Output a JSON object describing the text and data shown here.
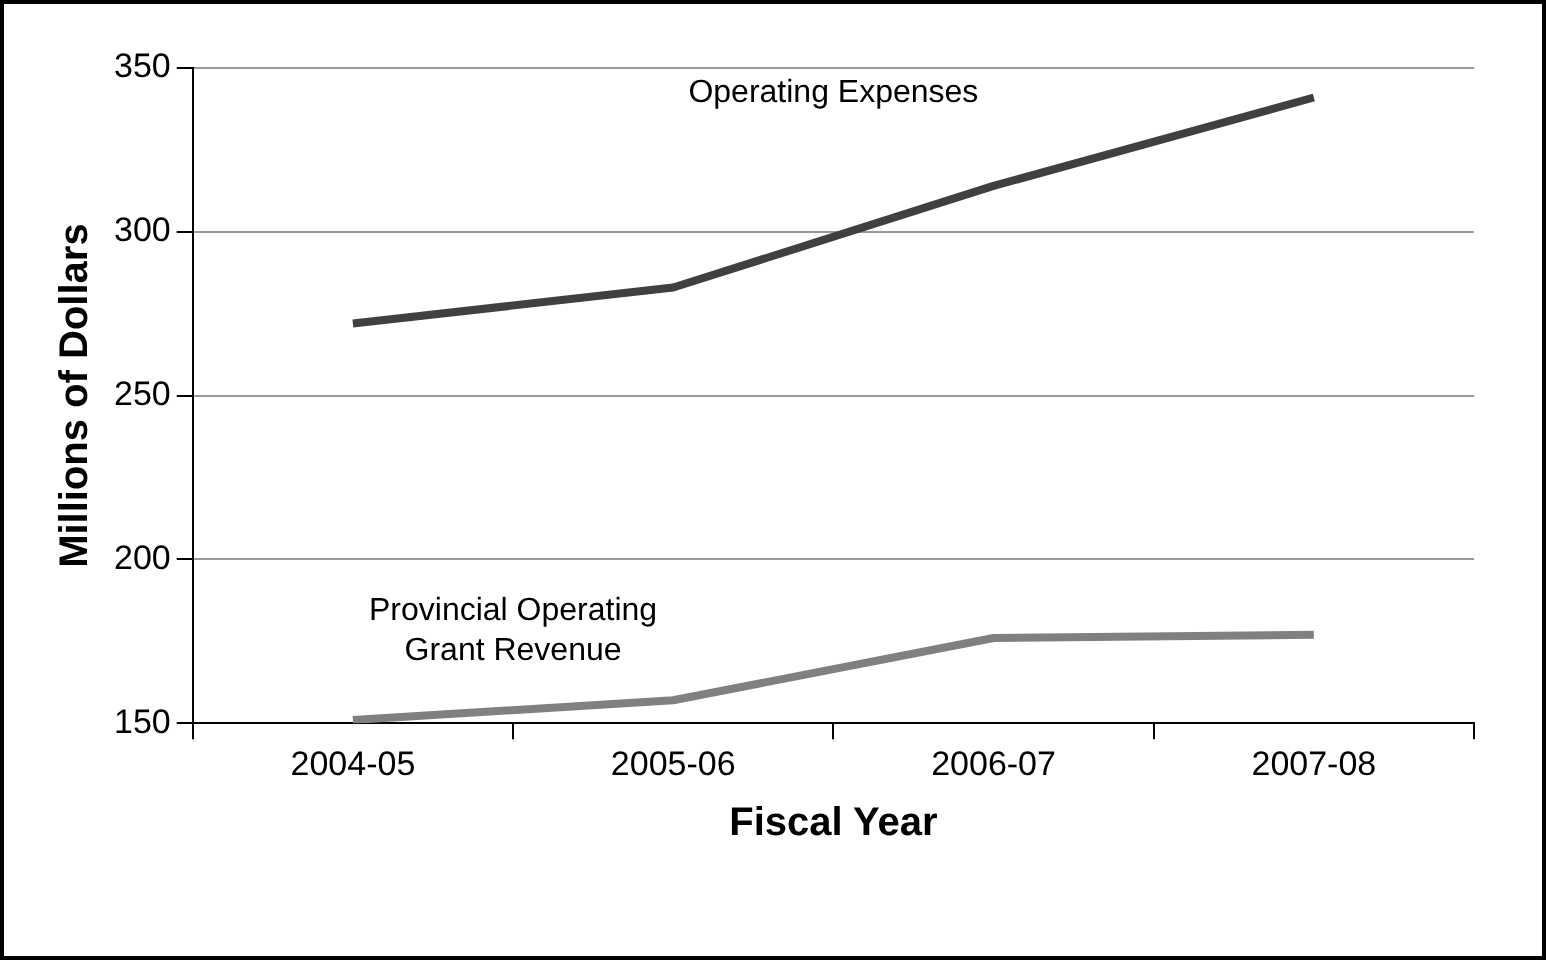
{
  "chart_data": {
    "type": "line",
    "xlabel": "Fiscal Year",
    "ylabel": "Millions of Dollars",
    "categories": [
      "2004-05",
      "2005-06",
      "2006-07",
      "2007-08"
    ],
    "series": [
      {
        "name": "Operating Expenses",
        "color": "#404040",
        "values": [
          272,
          283,
          314,
          341
        ]
      },
      {
        "name": "Provincial Operating Grant Revenue",
        "color": "#808080",
        "values": [
          151,
          157,
          176,
          177
        ]
      }
    ],
    "ylim": [
      150,
      350
    ],
    "yticks": [
      150,
      200,
      250,
      300,
      350
    ],
    "grid": "y",
    "legend": false,
    "marker": "none",
    "line_style": "solid"
  }
}
